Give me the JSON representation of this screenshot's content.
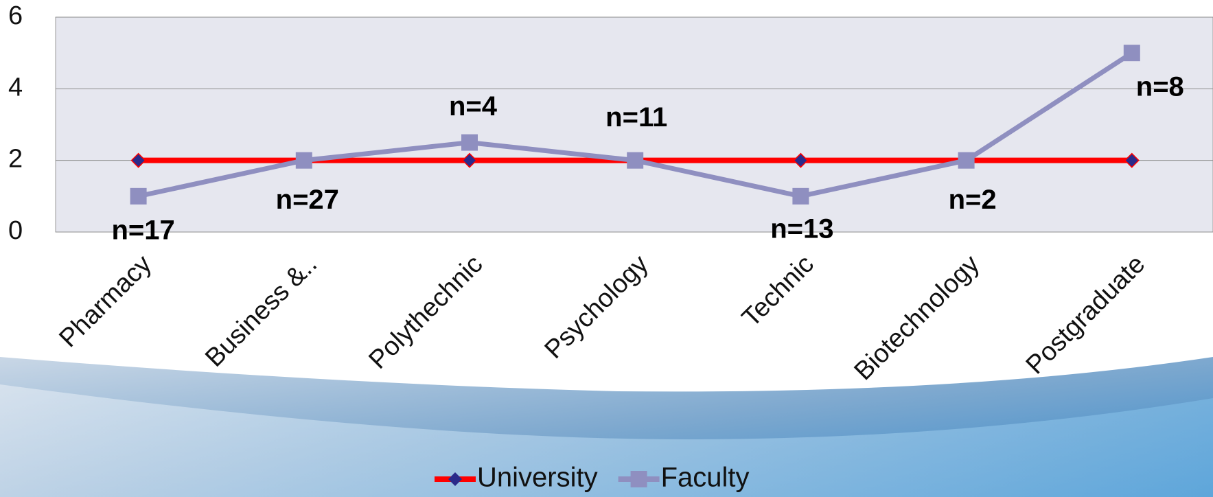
{
  "chart_data": {
    "type": "line",
    "categories": [
      "Pharmacy",
      "Business &..",
      "Polythechnic",
      "Psychology",
      "Technic",
      "Biotechnology",
      "Postgraduate"
    ],
    "series": [
      {
        "name": "University",
        "color": "#ff0000",
        "marker_color": "#2a2a8a",
        "values": [
          2,
          2,
          2,
          2,
          2,
          2,
          2
        ]
      },
      {
        "name": "Faculty",
        "color": "#8f8fc0",
        "values": [
          1,
          2,
          2.5,
          2,
          1,
          2,
          5
        ]
      }
    ],
    "annotations": [
      "n=17",
      "n=27",
      "n=4",
      "n=11",
      "n=13",
      "n=2",
      "n=8"
    ],
    "ylim": [
      0,
      6
    ],
    "yticks": [
      0,
      2,
      4,
      6
    ],
    "grid": true,
    "legend": "bottom"
  }
}
